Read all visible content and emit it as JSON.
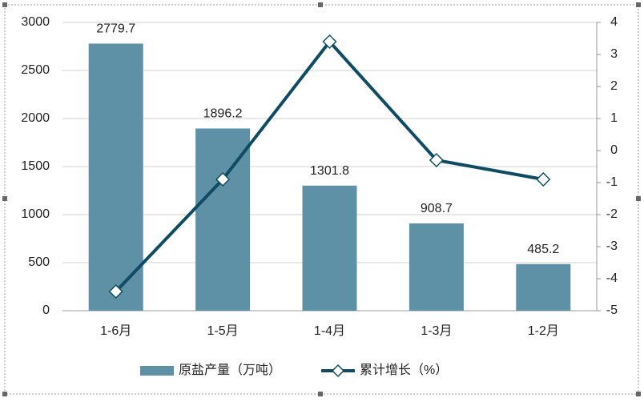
{
  "chart_data": {
    "type": "bar",
    "categories": [
      "1-6月",
      "1-5月",
      "1-4月",
      "1-3月",
      "1-2月"
    ],
    "series": [
      {
        "name": "原盐产量（万吨）",
        "type": "bar",
        "color": "#5e91a6",
        "values": [
          2779.7,
          1896.2,
          1301.8,
          908.7,
          485.2
        ]
      },
      {
        "name": "累计增长（%）",
        "type": "line",
        "axis": "y2",
        "color": "#0f4c63",
        "values": [
          -4.4,
          -0.9,
          3.4,
          -0.3,
          -0.9
        ]
      }
    ],
    "ylim": [
      0,
      3000
    ],
    "yticks": [
      0,
      500,
      1000,
      1500,
      2000,
      2500,
      3000
    ],
    "y2lim": [
      -5,
      4
    ],
    "y2ticks": [
      -5,
      -4,
      -3,
      -2,
      -1,
      0,
      1,
      2,
      3,
      4
    ],
    "grid": true,
    "legend": "bottom"
  }
}
